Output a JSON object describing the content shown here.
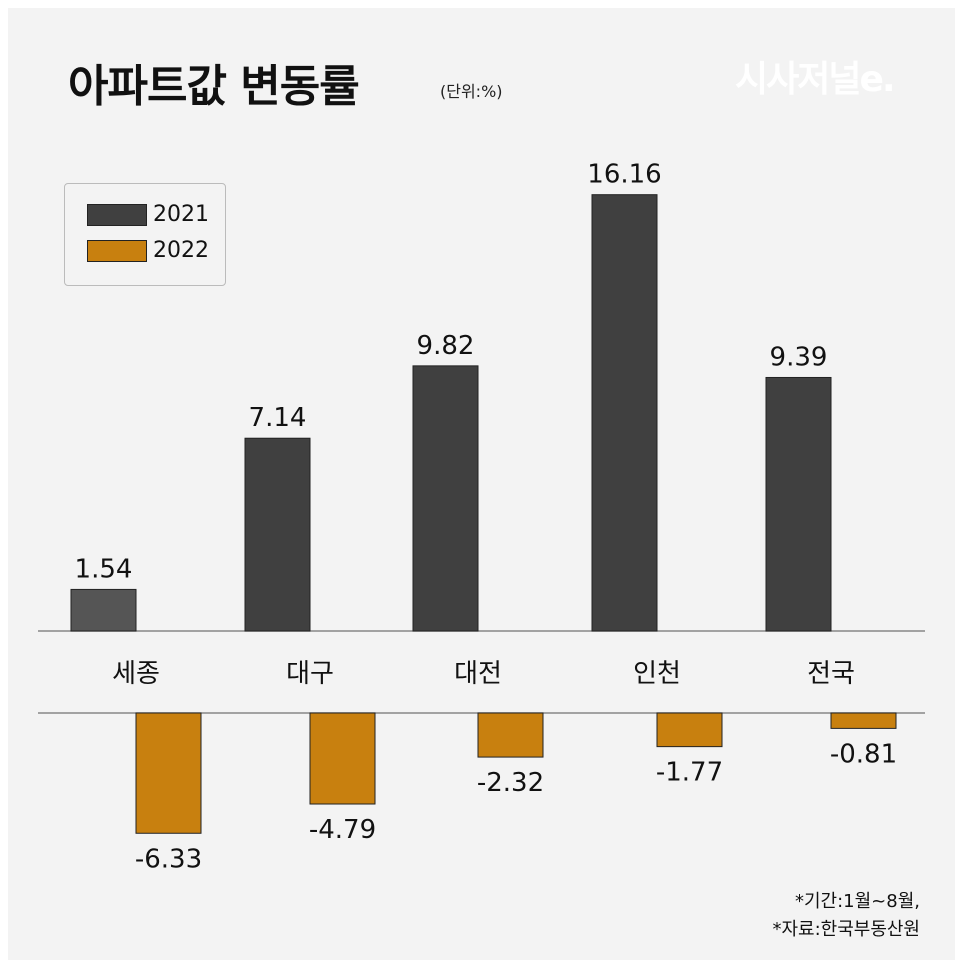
{
  "title": "아파트값 변동률",
  "unit": "(단위:%)",
  "logo": "시사저널e.",
  "notes": [
    "*기간:1월~8월,",
    "*자료:한국부동산원"
  ],
  "chart_data": {
    "type": "bar",
    "title": "아파트값 변동률",
    "categories": [
      "세종",
      "대구",
      "대전",
      "인천",
      "전국"
    ],
    "series": [
      {
        "name": "2021",
        "values": [
          1.54,
          7.14,
          9.82,
          16.16,
          9.39
        ],
        "color": "#404040"
      },
      {
        "name": "2022",
        "values": [
          -6.33,
          -4.79,
          -2.32,
          -1.77,
          -0.81
        ],
        "color": "#c8800f"
      }
    ],
    "legend": "top-left",
    "grid": false
  }
}
